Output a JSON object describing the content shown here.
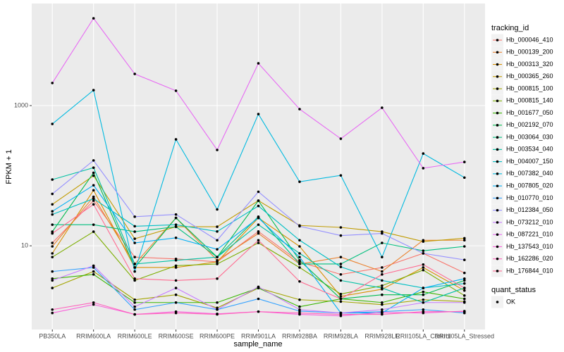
{
  "chart_data": {
    "type": "line",
    "x_label": "sample_name",
    "y_label": "FPKM + 1",
    "log_y": true,
    "grid": true,
    "legend_title": "tracking_id",
    "legend2_title": "quant_status",
    "legend2_items": [
      "OK"
    ],
    "point_color": "#000000",
    "categories": [
      "PB350LA",
      "RRIM600LA",
      "RRIM600LE",
      "RRIM600SE",
      "RRIM600PE",
      "RRIM901LA",
      "RRIM928BA",
      "RRIM928LA",
      "RRIM928LE",
      "RRII105LA_Control",
      "RRII105LA_Stressed"
    ],
    "ylim": [
      0.64,
      28600
    ],
    "yticks": [
      10,
      1000
    ],
    "series": [
      {
        "name": "Hb_000046_410",
        "color": "#F8766D",
        "values": [
          11,
          44,
          6.9,
          6.5,
          5.9,
          16,
          5.9,
          3.9,
          4.9,
          7.8,
          4.1
        ]
      },
      {
        "name": "Hb_000139_200",
        "color": "#EA8331",
        "values": [
          9.8,
          50,
          5.5,
          25,
          6.2,
          15,
          5.5,
          6.9,
          4.3,
          12,
          12
        ]
      },
      {
        "name": "Hb_000313_320",
        "color": "#D89000",
        "values": [
          7.8,
          62,
          4.9,
          4.9,
          5.9,
          25,
          9.8,
          1.9,
          2.4,
          4.9,
          2.3
        ]
      },
      {
        "name": "Hb_000365_260",
        "color": "#C09B00",
        "values": [
          39,
          100,
          12.6,
          18.7,
          18.7,
          44,
          19.5,
          18.3,
          15.9,
          11.5,
          12.8
        ]
      },
      {
        "name": "Hb_000815_100",
        "color": "#A3A500",
        "values": [
          2.5,
          4.3,
          1.7,
          2.0,
          1.3,
          2.5,
          1.7,
          1.6,
          1.45,
          1.7,
          1.6
        ]
      },
      {
        "name": "Hb_000815_140",
        "color": "#7CAE00",
        "values": [
          6.9,
          15.9,
          3.2,
          5.2,
          5.5,
          11,
          4.9,
          2.05,
          2.7,
          4.5,
          1.95
        ]
      },
      {
        "name": "Hb_001677_050",
        "color": "#39B600",
        "values": [
          3.4,
          3.9,
          1.55,
          1.55,
          1.55,
          2.5,
          1.35,
          1.75,
          1.55,
          2.2,
          1.75
        ]
      },
      {
        "name": "Hb_002192_070",
        "color": "#00BB4E",
        "values": [
          15.9,
          110,
          4.9,
          25,
          6.9,
          44,
          6.2,
          1.75,
          2.0,
          2.0,
          3.2
        ]
      },
      {
        "name": "Hb_003064_030",
        "color": "#00BF7D",
        "values": [
          20,
          20,
          15.9,
          18.7,
          6.9,
          26,
          5.5,
          5.5,
          11,
          8.5,
          9.8
        ]
      },
      {
        "name": "Hb_003534_040",
        "color": "#00C1A3",
        "values": [
          88,
          130,
          5.5,
          6.2,
          6.9,
          20,
          7.8,
          3.2,
          2.5,
          1.55,
          2.5
        ]
      },
      {
        "name": "Hb_004007_150",
        "color": "#00BFC4",
        "values": [
          28,
          47,
          19,
          20,
          16,
          37,
          12,
          5,
          3.2,
          2.5,
          2.9
        ]
      },
      {
        "name": "Hb_007382_040",
        "color": "#00BAE0",
        "values": [
          548,
          1660,
          4.3,
          330,
          33,
          757,
          82,
          101,
          6.9,
          207,
          94
        ]
      },
      {
        "name": "Hb_007805_020",
        "color": "#00B0F6",
        "values": [
          31,
          73,
          11,
          13,
          8.9,
          25,
          6.9,
          1.1,
          1.1,
          2.5,
          3.4
        ]
      },
      {
        "name": "Hb_010770_010",
        "color": "#35A2FF",
        "values": [
          4.3,
          4.9,
          1.23,
          1.55,
          1.23,
          1.75,
          1.17,
          1.1,
          1.15,
          1.23,
          1.1
        ]
      },
      {
        "name": "Hb_012384_050",
        "color": "#9590FF",
        "values": [
          55,
          165,
          26,
          28,
          12,
          59,
          19,
          14,
          15,
          7.8,
          6.3
        ]
      },
      {
        "name": "Hb_073212_010",
        "color": "#C77CFF",
        "values": [
          3.2,
          5.2,
          1.35,
          2.5,
          1.23,
          2.6,
          1.23,
          1.1,
          1.23,
          1.55,
          1.55
        ]
      },
      {
        "name": "Hb_087221_010",
        "color": "#E76BF3",
        "values": [
          2100,
          17600,
          2830,
          1630,
          233,
          4010,
          891,
          337,
          933,
          128,
          157
        ]
      },
      {
        "name": "Hb_137543_010",
        "color": "#FA62DB",
        "values": [
          1.1,
          1.45,
          1.05,
          1.15,
          1.07,
          1.15,
          1.05,
          1.0,
          1.12,
          1.1,
          1.17
        ]
      },
      {
        "name": "Hb_162286_020",
        "color": "#FF62BC",
        "values": [
          1.23,
          1.55,
          1.05,
          1.1,
          1.05,
          1.15,
          1.1,
          1.05,
          1.05,
          1.15,
          1.15
        ]
      },
      {
        "name": "Hb_176844_010",
        "color": "#FF6C91",
        "values": [
          15,
          39,
          3.4,
          3.2,
          3.4,
          12,
          3.1,
          1.75,
          3.9,
          5.4,
          2.5
        ]
      }
    ]
  }
}
